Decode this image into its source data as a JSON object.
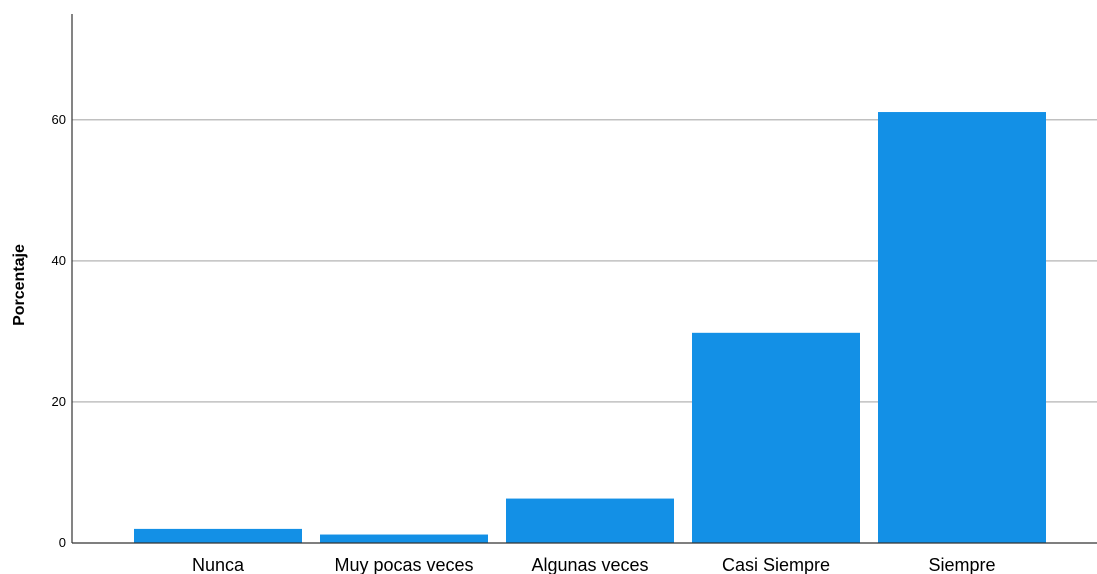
{
  "chart_data": {
    "type": "bar",
    "categories": [
      "Nunca",
      "Muy pocas veces",
      "Algunas  veces",
      "Casi Siempre",
      "Siempre"
    ],
    "values": [
      2.0,
      1.2,
      6.3,
      29.8,
      61.1
    ],
    "title": "",
    "xlabel": "",
    "ylabel": "Porcentaje",
    "ylim": [
      0,
      75
    ],
    "yticks": [
      0,
      20,
      40,
      60
    ],
    "grid": true,
    "bar_color": "#1390e6",
    "grid_color": "#c0c0c0",
    "axis_color": "#333333"
  }
}
